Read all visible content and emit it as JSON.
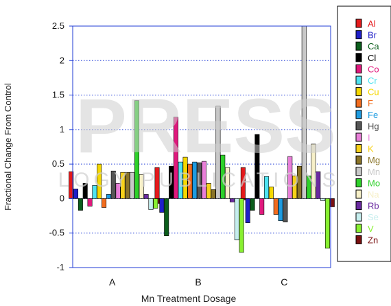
{
  "watermark": {
    "main": "PRESS",
    "sub": "LOGY PUBLICATIONS"
  },
  "chart_data": {
    "type": "bar",
    "title": "",
    "xlabel": "Mn Treatment Dosage",
    "ylabel": "Fractional Change From Control",
    "categories": [
      "A",
      "B",
      "C"
    ],
    "ylim": [
      -1,
      2.5
    ],
    "yticks": [
      -1,
      -0.5,
      0,
      0.5,
      1,
      1.5,
      2,
      2.5
    ],
    "ytick_labels": [
      "-1",
      "-0.5",
      "0",
      "0.5",
      "1",
      "1.5",
      "2",
      "2.5"
    ],
    "grid": "horizontal dotted",
    "legend_position": "right",
    "series": [
      {
        "name": "Al",
        "color": "#e41a1c",
        "values": [
          0.39,
          0.45,
          0.45
        ]
      },
      {
        "name": "Br",
        "color": "#1f1fc8",
        "values": [
          0.14,
          -0.2,
          -0.35
        ]
      },
      {
        "name": "Ca",
        "color": "#0b5e1c",
        "values": [
          -0.17,
          -0.54,
          -0.17
        ]
      },
      {
        "name": "Cl",
        "color": "#000000",
        "values": [
          0.22,
          0.47,
          0.93
        ]
      },
      {
        "name": "Co",
        "color": "#e0197d",
        "values": [
          -0.11,
          1.18,
          -0.23
        ]
      },
      {
        "name": "Cr",
        "color": "#4fe3f0",
        "values": [
          0.19,
          0.53,
          0.32
        ]
      },
      {
        "name": "Cu",
        "color": "#f5d800",
        "values": [
          0.5,
          0.6,
          0.17
        ]
      },
      {
        "name": "F",
        "color": "#f26c1e",
        "values": [
          -0.13,
          0.5,
          -0.23
        ]
      },
      {
        "name": "Fe",
        "color": "#1e9be0",
        "values": [
          0.06,
          0.53,
          -0.32
        ]
      },
      {
        "name": "Hg",
        "color": "#555555",
        "values": [
          0.4,
          0.52,
          -0.34
        ]
      },
      {
        "name": "I",
        "color": "#e87fd8",
        "values": [
          0.22,
          0.54,
          0.61
        ]
      },
      {
        "name": "K",
        "color": "#f7d21a",
        "values": [
          0.38,
          0.22,
          0.33
        ]
      },
      {
        "name": "Mg",
        "color": "#8a7428",
        "values": [
          0.38,
          0.13,
          0.47
        ]
      },
      {
        "name": "Mn",
        "color": "#c8c8c8",
        "values": [
          0.38,
          1.34,
          2.5
        ]
      },
      {
        "name": "Mo",
        "color": "#2ed12a",
        "values": [
          1.42,
          0.63,
          0.33
        ]
      },
      {
        "name": "Na",
        "color": "#f7f0c8",
        "values": [
          0.35,
          0.45,
          0.79
        ]
      },
      {
        "name": "Rb",
        "color": "#6a2aa0",
        "values": [
          0.06,
          -0.05,
          0.39
        ]
      },
      {
        "name": "Se",
        "color": "#c6eeee",
        "values": [
          -0.16,
          -0.6,
          -0.03
        ]
      },
      {
        "name": "V",
        "color": "#88f030",
        "values": [
          -0.14,
          -0.78,
          -0.72
        ]
      },
      {
        "name": "Zn",
        "color": "#7a1010",
        "values": [
          -0.07,
          -0.02,
          -0.12
        ]
      }
    ]
  }
}
